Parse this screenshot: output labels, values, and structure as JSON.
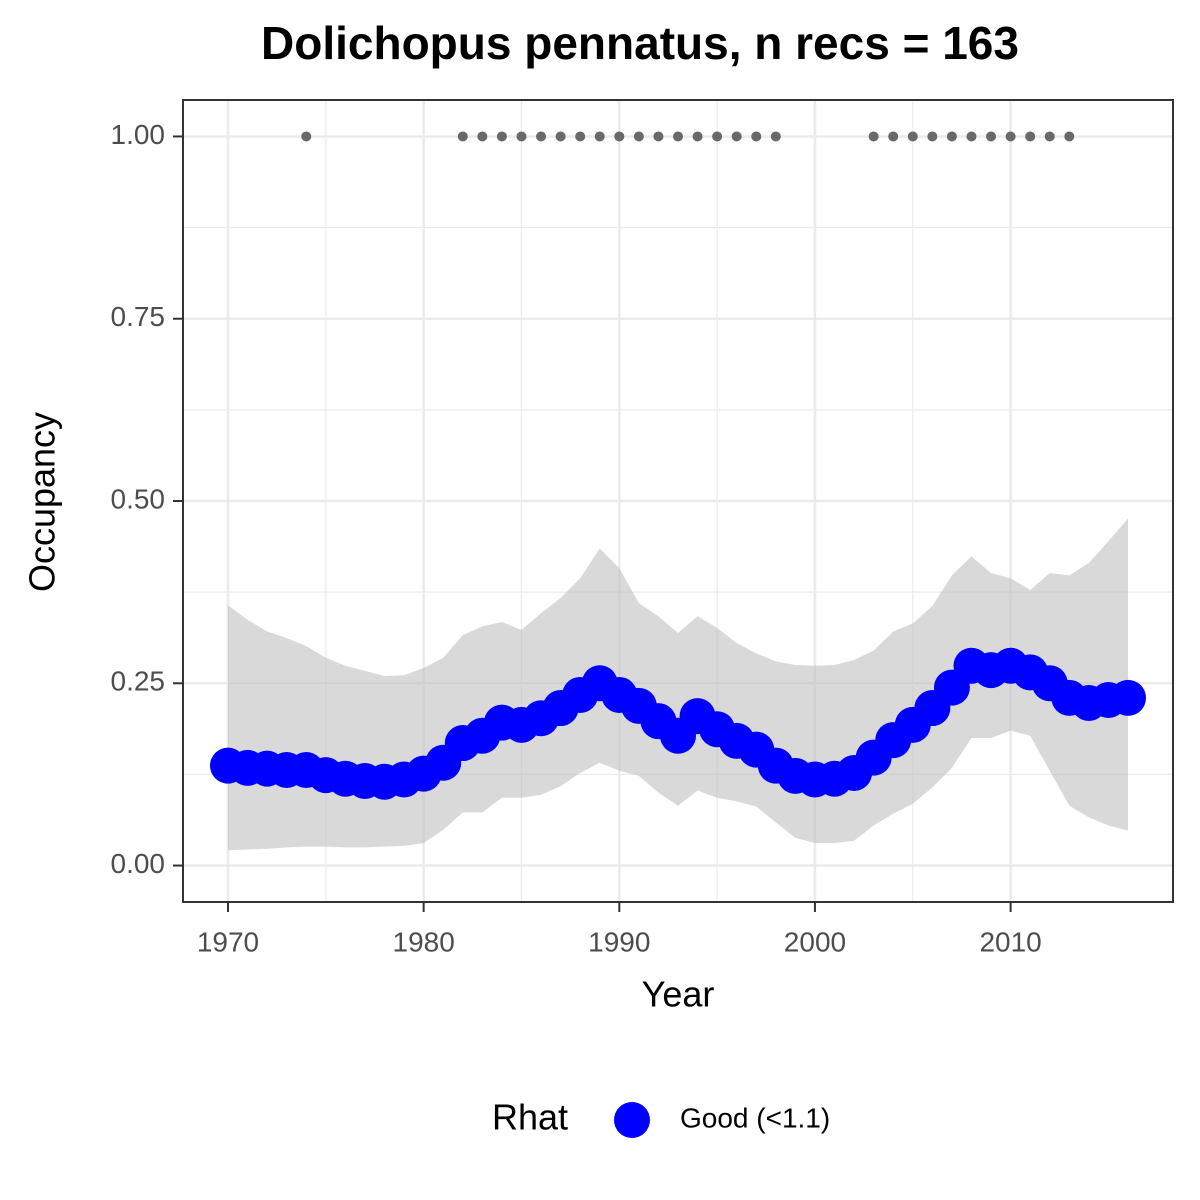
{
  "chart_data": {
    "type": "line",
    "title": "Dolichopus pennatus, n recs = 163",
    "x_label": "Year",
    "y_label": "Occupancy",
    "x": [
      1970,
      1971,
      1972,
      1973,
      1974,
      1975,
      1976,
      1977,
      1978,
      1979,
      1980,
      1981,
      1982,
      1983,
      1984,
      1985,
      1986,
      1987,
      1988,
      1989,
      1990,
      1991,
      1992,
      1993,
      1994,
      1995,
      1996,
      1997,
      1998,
      1999,
      2000,
      2001,
      2002,
      2003,
      2004,
      2005,
      2006,
      2007,
      2008,
      2009,
      2010,
      2011,
      2012,
      2013,
      2014,
      2015,
      2016
    ],
    "series": [
      {
        "name": "Good (<1.1)",
        "color": "#0000ff",
        "values": [
          0.137,
          0.134,
          0.133,
          0.131,
          0.131,
          0.124,
          0.119,
          0.116,
          0.115,
          0.118,
          0.126,
          0.141,
          0.168,
          0.178,
          0.196,
          0.193,
          0.202,
          0.216,
          0.234,
          0.25,
          0.234,
          0.219,
          0.198,
          0.178,
          0.205,
          0.187,
          0.171,
          0.159,
          0.137,
          0.123,
          0.118,
          0.119,
          0.127,
          0.148,
          0.172,
          0.193,
          0.216,
          0.244,
          0.274,
          0.268,
          0.274,
          0.265,
          0.25,
          0.23,
          0.223,
          0.227,
          0.23
        ],
        "upper": [
          0.357,
          0.337,
          0.321,
          0.312,
          0.301,
          0.285,
          0.274,
          0.267,
          0.26,
          0.261,
          0.271,
          0.285,
          0.316,
          0.328,
          0.334,
          0.323,
          0.346,
          0.367,
          0.394,
          0.435,
          0.408,
          0.36,
          0.342,
          0.319,
          0.342,
          0.326,
          0.305,
          0.291,
          0.28,
          0.275,
          0.274,
          0.275,
          0.282,
          0.295,
          0.321,
          0.332,
          0.356,
          0.398,
          0.424,
          0.401,
          0.394,
          0.378,
          0.401,
          0.398,
          0.415,
          0.445,
          0.476
        ],
        "lower": [
          0.021,
          0.022,
          0.023,
          0.025,
          0.026,
          0.026,
          0.025,
          0.025,
          0.026,
          0.027,
          0.031,
          0.049,
          0.073,
          0.073,
          0.093,
          0.093,
          0.097,
          0.109,
          0.127,
          0.141,
          0.13,
          0.123,
          0.1,
          0.082,
          0.103,
          0.093,
          0.088,
          0.081,
          0.059,
          0.038,
          0.031,
          0.031,
          0.034,
          0.055,
          0.071,
          0.085,
          0.107,
          0.134,
          0.175,
          0.175,
          0.185,
          0.178,
          0.13,
          0.082,
          0.066,
          0.055,
          0.048
        ]
      }
    ],
    "band_color": "#bfbfbf",
    "records": {
      "x": [
        1974,
        1982,
        1983,
        1984,
        1985,
        1986,
        1987,
        1988,
        1989,
        1990,
        1991,
        1992,
        1993,
        1994,
        1995,
        1996,
        1997,
        1998,
        2003,
        2004,
        2005,
        2006,
        2007,
        2008,
        2009,
        2010,
        2011,
        2012,
        2013
      ],
      "values": [
        1,
        1,
        1,
        1,
        1,
        1,
        1,
        1,
        1,
        1,
        1,
        1,
        1,
        1,
        1,
        1,
        1,
        1,
        1,
        1,
        1,
        1,
        1,
        1,
        1,
        1,
        1,
        1,
        1
      ],
      "color": "#696969"
    },
    "xlim": [
      1967.7,
      2018.3
    ],
    "ylim": [
      -0.05,
      1.05
    ],
    "xticks": [
      1970,
      1980,
      1990,
      2000,
      2010
    ],
    "yticks": [
      {
        "value": 0,
        "label": "0.00"
      },
      {
        "value": 0.25,
        "label": "0.25"
      },
      {
        "value": 0.5,
        "label": "0.50"
      },
      {
        "value": 0.75,
        "label": "0.75"
      },
      {
        "value": 1,
        "label": "1.00"
      }
    ],
    "grid": true,
    "legend_title": "Rhat",
    "legend_position": "bottom"
  }
}
